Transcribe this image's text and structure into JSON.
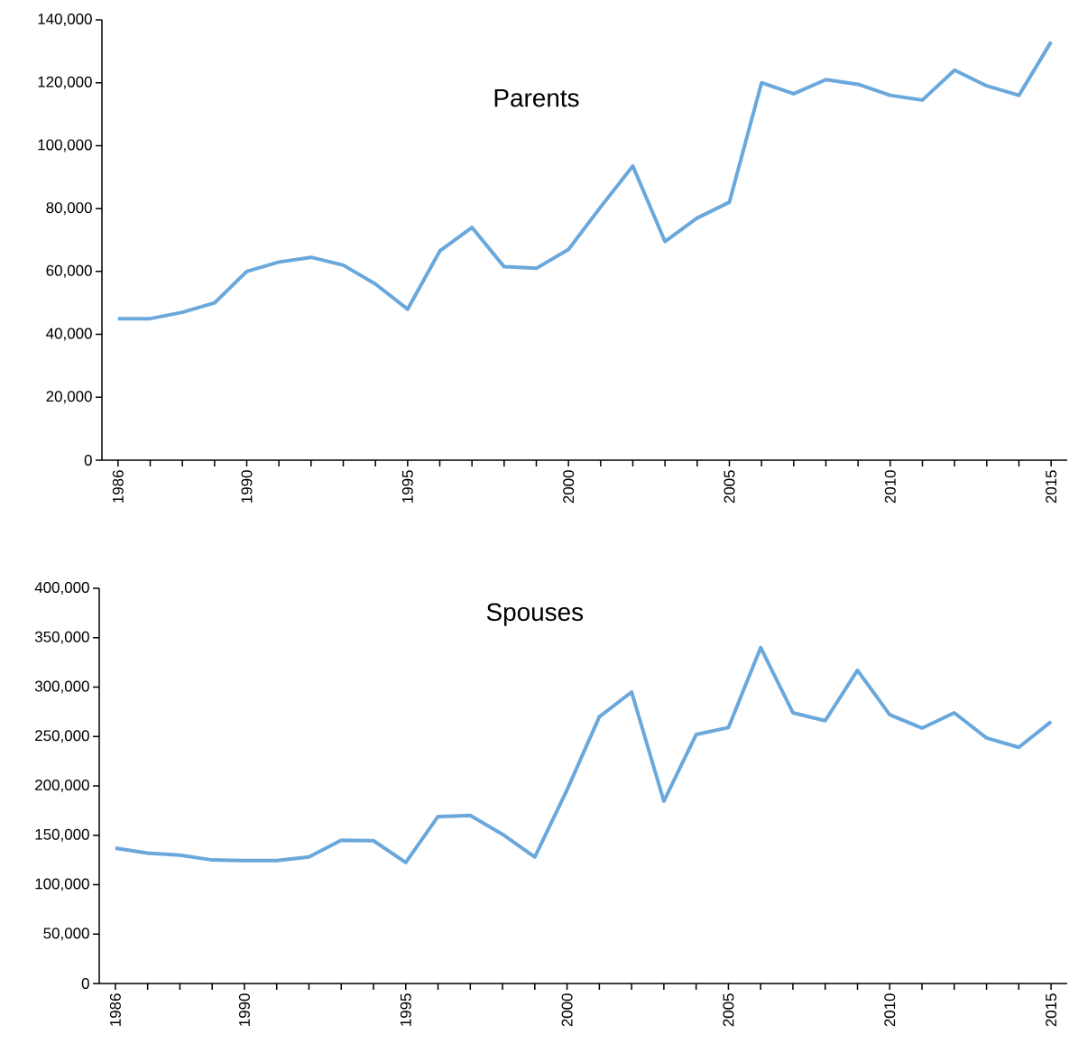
{
  "chart_data": [
    {
      "type": "line",
      "title": "Parents",
      "color": "#6aa8dc",
      "x": [
        1986,
        1987,
        1988,
        1989,
        1990,
        1991,
        1992,
        1993,
        1994,
        1995,
        1996,
        1997,
        1998,
        1999,
        2000,
        2001,
        2002,
        2003,
        2004,
        2005,
        2006,
        2007,
        2008,
        2009,
        2010,
        2011,
        2012,
        2013,
        2014,
        2015
      ],
      "values": [
        45000,
        45000,
        47000,
        50000,
        60000,
        63000,
        64500,
        62000,
        56000,
        48000,
        66500,
        74000,
        61500,
        61000,
        67000,
        80500,
        93500,
        69500,
        77000,
        82000,
        120000,
        116500,
        121000,
        119500,
        116000,
        114500,
        124000,
        119000,
        116000,
        133000
      ],
      "xlim": [
        1985.5,
        2015.5
      ],
      "ylim": [
        0,
        140000
      ],
      "xticks": [
        {
          "value": 1986,
          "label": "1986"
        },
        {
          "value": 1987,
          "label": null
        },
        {
          "value": 1988,
          "label": null
        },
        {
          "value": 1989,
          "label": null
        },
        {
          "value": 1990,
          "label": "1990"
        },
        {
          "value": 1991,
          "label": null
        },
        {
          "value": 1992,
          "label": null
        },
        {
          "value": 1993,
          "label": null
        },
        {
          "value": 1994,
          "label": null
        },
        {
          "value": 1995,
          "label": "1995"
        },
        {
          "value": 1996,
          "label": null
        },
        {
          "value": 1997,
          "label": null
        },
        {
          "value": 1998,
          "label": null
        },
        {
          "value": 1999,
          "label": null
        },
        {
          "value": 2000,
          "label": "2000"
        },
        {
          "value": 2001,
          "label": null
        },
        {
          "value": 2002,
          "label": null
        },
        {
          "value": 2003,
          "label": null
        },
        {
          "value": 2004,
          "label": null
        },
        {
          "value": 2005,
          "label": "2005"
        },
        {
          "value": 2006,
          "label": null
        },
        {
          "value": 2007,
          "label": null
        },
        {
          "value": 2008,
          "label": null
        },
        {
          "value": 2009,
          "label": null
        },
        {
          "value": 2010,
          "label": "2010"
        },
        {
          "value": 2011,
          "label": null
        },
        {
          "value": 2012,
          "label": null
        },
        {
          "value": 2013,
          "label": null
        },
        {
          "value": 2014,
          "label": null
        },
        {
          "value": 2015,
          "label": "2015"
        }
      ],
      "yticks": [
        0,
        {
          "value": 20000,
          "label": "20,000"
        },
        {
          "value": 40000,
          "label": "40,000"
        },
        {
          "value": 60000,
          "label": "60,000"
        },
        {
          "value": 80000,
          "label": "80,000"
        },
        {
          "value": 100000,
          "label": "100,000"
        },
        {
          "value": 120000,
          "label": "120,000"
        },
        {
          "value": 140000,
          "label": "140,000"
        }
      ]
    },
    {
      "type": "line",
      "title": "Spouses",
      "color": "#6aa8dc",
      "x": [
        1986,
        1987,
        1988,
        1989,
        1990,
        1991,
        1992,
        1993,
        1994,
        1995,
        1996,
        1997,
        1998,
        1999,
        2000,
        2001,
        2002,
        2003,
        2004,
        2005,
        2006,
        2007,
        2008,
        2009,
        2010,
        2011,
        2012,
        2013,
        2014,
        2015
      ],
      "values": [
        137000,
        132000,
        130000,
        125000,
        124500,
        124500,
        128000,
        145000,
        144500,
        122500,
        169000,
        170000,
        151000,
        128000,
        196000,
        270000,
        295000,
        184500,
        252000,
        259000,
        340000,
        274000,
        266000,
        317000,
        272000,
        258500,
        274000,
        248500,
        239000,
        265000
      ],
      "xlim": [
        1985.5,
        2015.5
      ],
      "ylim": [
        0,
        400000
      ],
      "xticks": [
        {
          "value": 1986,
          "label": "1986"
        },
        {
          "value": 1987,
          "label": null
        },
        {
          "value": 1988,
          "label": null
        },
        {
          "value": 1989,
          "label": null
        },
        {
          "value": 1990,
          "label": "1990"
        },
        {
          "value": 1991,
          "label": null
        },
        {
          "value": 1992,
          "label": null
        },
        {
          "value": 1993,
          "label": null
        },
        {
          "value": 1994,
          "label": null
        },
        {
          "value": 1995,
          "label": "1995"
        },
        {
          "value": 1996,
          "label": null
        },
        {
          "value": 1997,
          "label": null
        },
        {
          "value": 1998,
          "label": null
        },
        {
          "value": 1999,
          "label": null
        },
        {
          "value": 2000,
          "label": "2000"
        },
        {
          "value": 2001,
          "label": null
        },
        {
          "value": 2002,
          "label": null
        },
        {
          "value": 2003,
          "label": null
        },
        {
          "value": 2004,
          "label": null
        },
        {
          "value": 2005,
          "label": "2005"
        },
        {
          "value": 2006,
          "label": null
        },
        {
          "value": 2007,
          "label": null
        },
        {
          "value": 2008,
          "label": null
        },
        {
          "value": 2009,
          "label": null
        },
        {
          "value": 2010,
          "label": "2010"
        },
        {
          "value": 2011,
          "label": null
        },
        {
          "value": 2012,
          "label": null
        },
        {
          "value": 2013,
          "label": null
        },
        {
          "value": 2014,
          "label": null
        },
        {
          "value": 2015,
          "label": "2015"
        }
      ],
      "yticks": [
        0,
        {
          "value": 50000,
          "label": "50,000"
        },
        {
          "value": 100000,
          "label": "100,000"
        },
        {
          "value": 150000,
          "label": "150,000"
        },
        {
          "value": 200000,
          "label": "200,000"
        },
        {
          "value": 250000,
          "label": "250,000"
        },
        {
          "value": 300000,
          "label": "300,000"
        },
        {
          "value": 350000,
          "label": "350,000"
        },
        {
          "value": 400000,
          "label": "400,000"
        }
      ]
    }
  ]
}
